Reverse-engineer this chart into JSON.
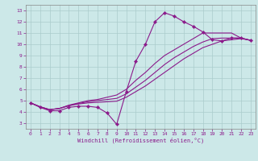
{
  "xlabel": "Windchill (Refroidissement éolien,°C)",
  "bg_color": "#cce8e8",
  "grid_color": "#aacccc",
  "line_color": "#8b1a8b",
  "xlim": [
    -0.5,
    23.5
  ],
  "ylim": [
    2.5,
    13.5
  ],
  "xticks": [
    0,
    1,
    2,
    3,
    4,
    5,
    6,
    7,
    8,
    9,
    10,
    11,
    12,
    13,
    14,
    15,
    16,
    17,
    18,
    19,
    20,
    21,
    22,
    23
  ],
  "yticks": [
    3,
    4,
    5,
    6,
    7,
    8,
    9,
    10,
    11,
    12,
    13
  ],
  "series_marked": {
    "x": [
      0,
      1,
      2,
      3,
      4,
      5,
      6,
      7,
      8,
      9,
      10,
      11,
      12,
      13,
      14,
      15,
      16,
      17,
      18,
      19,
      20,
      21,
      22,
      23
    ],
    "y": [
      4.8,
      4.4,
      4.1,
      4.1,
      4.4,
      4.5,
      4.5,
      4.4,
      3.9,
      2.9,
      5.8,
      8.5,
      10.0,
      12.0,
      12.8,
      12.5,
      12.0,
      11.6,
      11.1,
      10.4,
      10.3,
      10.55,
      10.55,
      10.35
    ]
  },
  "series_smooth": [
    {
      "x": [
        0,
        1,
        2,
        3,
        4,
        5,
        6,
        7,
        8,
        9,
        10,
        11,
        12,
        13,
        14,
        15,
        16,
        17,
        18,
        19,
        20,
        21,
        22,
        23
      ],
      "y": [
        4.8,
        4.45,
        4.2,
        4.3,
        4.6,
        4.8,
        5.0,
        5.1,
        5.3,
        5.5,
        6.0,
        6.8,
        7.5,
        8.3,
        9.0,
        9.5,
        10.0,
        10.5,
        11.0,
        11.0,
        11.0,
        11.0,
        10.55,
        10.35
      ]
    },
    {
      "x": [
        0,
        1,
        2,
        3,
        4,
        5,
        6,
        7,
        8,
        9,
        10,
        11,
        12,
        13,
        14,
        15,
        16,
        17,
        18,
        19,
        20,
        21,
        22,
        23
      ],
      "y": [
        4.8,
        4.45,
        4.2,
        4.3,
        4.55,
        4.75,
        4.9,
        5.0,
        5.1,
        5.2,
        5.6,
        6.2,
        6.8,
        7.5,
        8.2,
        8.8,
        9.3,
        9.8,
        10.2,
        10.5,
        10.55,
        10.55,
        10.55,
        10.35
      ]
    },
    {
      "x": [
        0,
        1,
        2,
        3,
        4,
        5,
        6,
        7,
        8,
        9,
        10,
        11,
        12,
        13,
        14,
        15,
        16,
        17,
        18,
        19,
        20,
        21,
        22,
        23
      ],
      "y": [
        4.8,
        4.45,
        4.2,
        4.3,
        4.55,
        4.7,
        4.8,
        4.85,
        4.9,
        4.95,
        5.3,
        5.8,
        6.3,
        6.9,
        7.5,
        8.1,
        8.7,
        9.2,
        9.7,
        10.0,
        10.3,
        10.4,
        10.5,
        10.35
      ]
    }
  ]
}
